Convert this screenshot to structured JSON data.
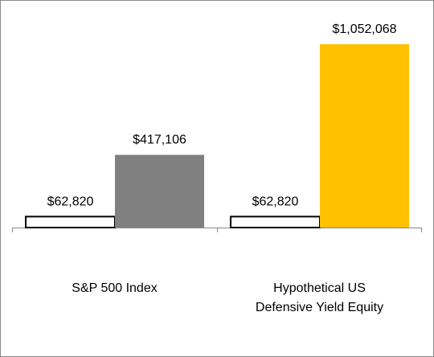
{
  "chart_data": {
    "type": "bar",
    "categories": [
      [
        "S&P 500 Index"
      ],
      [
        "Hypothetical US",
        "Defensive Yield Equity"
      ]
    ],
    "series": [
      {
        "color": "#ffffff",
        "stroke": "#000000",
        "values": [
          62820,
          62820
        ],
        "value_labels": [
          "$62,820",
          "$62,820"
        ]
      },
      {
        "colors": [
          "#808080",
          "#ffc000"
        ],
        "values": [
          417106,
          1052068
        ],
        "value_labels": [
          "$417,106",
          "$1,052,068"
        ]
      }
    ]
  }
}
